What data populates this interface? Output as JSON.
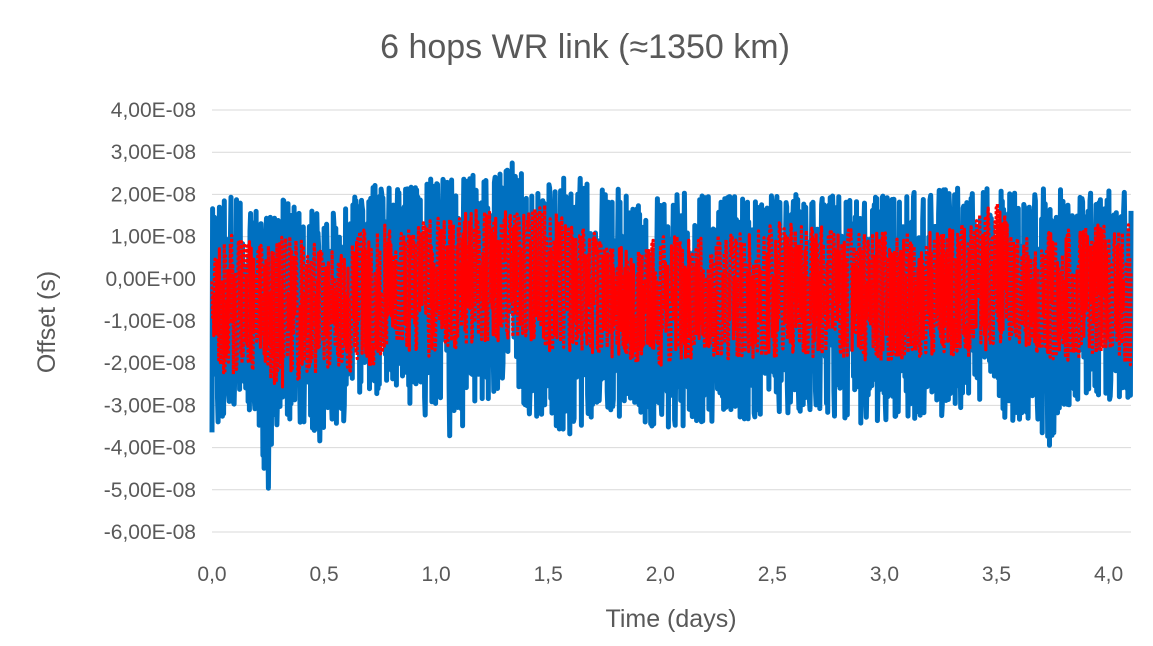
{
  "chart_data": {
    "type": "line",
    "title": "6 hops WR link (≈1350 km)",
    "xlabel": "Time (days)",
    "ylabel": "Offset (s)",
    "xlim": [
      0,
      4.1
    ],
    "ylim": [
      -6e-08,
      4e-08
    ],
    "x_ticks": [
      0,
      0.5,
      1.0,
      1.5,
      2.0,
      2.5,
      3.0,
      3.5,
      4.0
    ],
    "x_tick_labels": [
      "0,0",
      "0,5",
      "1,0",
      "1,5",
      "2,0",
      "2,5",
      "3,0",
      "3,5",
      "4,0"
    ],
    "y_ticks": [
      4e-08,
      3e-08,
      2e-08,
      1e-08,
      0,
      -1e-08,
      -2e-08,
      -3e-08,
      -4e-08,
      -5e-08,
      -6e-08
    ],
    "y_tick_labels": [
      "4,00E-08",
      "3,00E-08",
      "2,00E-08",
      "1,00E-08",
      "0,00E+00",
      "-1,00E-08",
      "-2,00E-08",
      "-3,00E-08",
      "-4,00E-08",
      "-5,00E-08",
      "-6,00E-08"
    ],
    "grid": true,
    "legend": "none",
    "series": [
      {
        "color": "#0070C0",
        "style": "solid",
        "envelope": {
          "x": [
            0.0,
            0.1,
            0.2,
            0.25,
            0.3,
            0.4,
            0.5,
            0.6,
            0.7,
            0.8,
            0.9,
            1.0,
            1.1,
            1.2,
            1.3,
            1.35,
            1.4,
            1.5,
            1.6,
            1.7,
            1.8,
            1.9,
            2.0,
            2.2,
            2.4,
            2.6,
            2.8,
            3.0,
            3.2,
            3.4,
            3.6,
            3.75,
            3.8,
            4.0,
            4.1
          ],
          "max": [
            1.7e-08,
            2e-08,
            2e-08,
            1.8e-08,
            1.9e-08,
            1.7e-08,
            1.5e-08,
            1.7e-08,
            2.4e-08,
            2.3e-08,
            2.3e-08,
            2.4e-08,
            2.4e-08,
            2.5e-08,
            2.5e-08,
            2.85e-08,
            2.4e-08,
            2.3e-08,
            2.5e-08,
            2.4e-08,
            2.2e-08,
            2e-08,
            2.1e-08,
            2e-08,
            2e-08,
            2e-08,
            2e-08,
            2e-08,
            2.1e-08,
            2.2e-08,
            2.1e-08,
            2.2e-08,
            2.1e-08,
            2.1e-08,
            2.1e-08
          ],
          "min": [
            -3.7e-08,
            -3e-08,
            -3.5e-08,
            -5.5e-08,
            -3.3e-08,
            -3.8e-08,
            -3.9e-08,
            -3.4e-08,
            -3.2e-08,
            -2.8e-08,
            -3e-08,
            -3.6e-08,
            -3.8e-08,
            -3e-08,
            -2.6e-08,
            -2.2e-08,
            -3.3e-08,
            -3.3e-08,
            -3.9e-08,
            -3.4e-08,
            -3.3e-08,
            -3.3e-08,
            -3.6e-08,
            -3.4e-08,
            -3.4e-08,
            -3.2e-08,
            -3.3e-08,
            -3.6e-08,
            -3.3e-08,
            -3.1e-08,
            -3.5e-08,
            -4e-08,
            -3e-08,
            -2.9e-08,
            -2.8e-08
          ]
        }
      },
      {
        "color": "#FF0000",
        "style": "dotted",
        "envelope": {
          "x": [
            0.0,
            0.1,
            0.2,
            0.3,
            0.4,
            0.5,
            0.6,
            0.7,
            0.8,
            0.9,
            1.0,
            1.1,
            1.2,
            1.3,
            1.4,
            1.5,
            1.6,
            1.7,
            1.8,
            1.9,
            2.0,
            2.2,
            2.4,
            2.6,
            2.8,
            3.0,
            3.2,
            3.4,
            3.5,
            3.6,
            3.8,
            4.0,
            4.1
          ],
          "max": [
            5e-09,
            1.2e-08,
            8e-09,
            1e-08,
            1e-08,
            8e-09,
            6e-09,
            1.5e-08,
            1.2e-08,
            1.2e-08,
            1.5e-08,
            1.8e-08,
            1.7e-08,
            1.6e-08,
            1.6e-08,
            1.8e-08,
            1.3e-08,
            1.1e-08,
            8e-09,
            8e-09,
            1e-08,
            1e-08,
            1.1e-08,
            1.6e-08,
            1.2e-08,
            1.1e-08,
            1.1e-08,
            1.4e-08,
            1.9e-08,
            9e-09,
            1.2e-08,
            1.3e-08,
            1.3e-08
          ],
          "min": [
            -2.1e-08,
            -2.4e-08,
            -2.1e-08,
            -2.6e-08,
            -2.4e-08,
            -2.2e-08,
            -2.2e-08,
            -2.2e-08,
            -1.5e-08,
            -1.8e-08,
            -2e-08,
            -1.6e-08,
            -1.5e-08,
            -1.5e-08,
            -1.4e-08,
            -1.7e-08,
            -1.7e-08,
            -1.8e-08,
            -1.9e-08,
            -2e-08,
            -2.1e-08,
            -1.8e-08,
            -2e-08,
            -1.8e-08,
            -2e-08,
            -2e-08,
            -1.8e-08,
            -1.9e-08,
            -1.5e-08,
            -1.6e-08,
            -2e-08,
            -1.7e-08,
            -2.1e-08
          ]
        }
      }
    ]
  }
}
